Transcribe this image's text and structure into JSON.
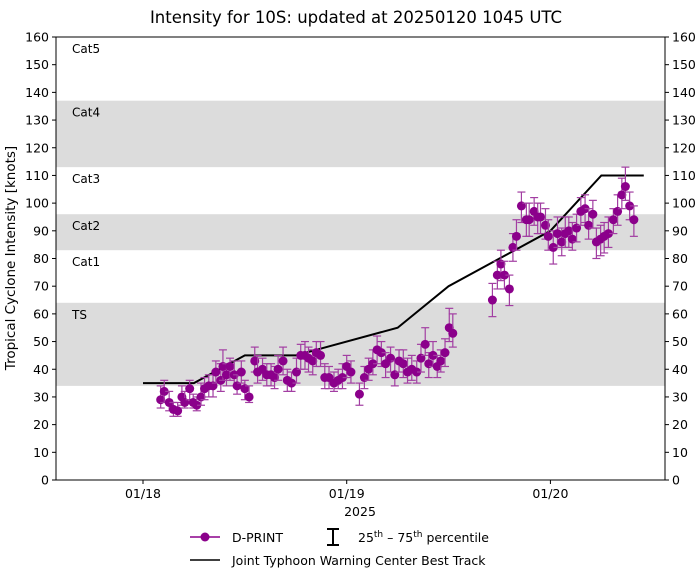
{
  "chart_data": {
    "type": "scatter",
    "title": "Intensity for 10S: updated at 20250120 1045 UTC",
    "xlabel": "2025",
    "ylabel": "Tropical Cyclone Intensity [knots]",
    "xlim": [
      "01/17 13:45",
      "01/20 13:30"
    ],
    "ylim": [
      0,
      160
    ],
    "x_ticks": [
      "01/18",
      "01/19",
      "01/20"
    ],
    "y_ticks": [
      0,
      10,
      20,
      30,
      40,
      50,
      60,
      70,
      80,
      90,
      100,
      110,
      120,
      130,
      140,
      150,
      160
    ],
    "grid": false,
    "category_bands": [
      {
        "label": "TS",
        "range": [
          34,
          64
        ],
        "shaded": true
      },
      {
        "label": "Cat1",
        "range": [
          64,
          83
        ],
        "shaded": false
      },
      {
        "label": "Cat2",
        "range": [
          83,
          96
        ],
        "shaded": true
      },
      {
        "label": "Cat3",
        "range": [
          96,
          113
        ],
        "shaded": false
      },
      {
        "label": "Cat4",
        "range": [
          113,
          137
        ],
        "shaded": true
      },
      {
        "label": "Cat5",
        "range": [
          137,
          160
        ],
        "shaded": false
      }
    ],
    "band_color": "#dcdcdc",
    "legend": {
      "placement": "bottom",
      "dprint": "D-PRINT",
      "percentile_pre": "25",
      "percentile_sup1": "th",
      "percentile_mid": " – 75",
      "percentile_sup2": "th",
      "percentile_post": " percentile",
      "best_track": "Joint Typhoon Warning Center Best Track"
    },
    "series": [
      {
        "name": "D-PRINT",
        "color": "#8b008b",
        "fields": [
          "time",
          "intensity",
          "p25",
          "p75"
        ],
        "points": [
          [
            "01/18 02:05",
            29,
            26,
            34
          ],
          [
            "01/18 02:30",
            32,
            28,
            36
          ],
          [
            "01/18 03:05",
            28,
            25,
            32
          ],
          [
            "01/18 03:35",
            25.5,
            23,
            28
          ],
          [
            "01/18 04:05",
            25,
            23,
            28
          ],
          [
            "01/18 04:35",
            30,
            27,
            34
          ],
          [
            "01/18 04:55",
            28,
            26,
            32
          ],
          [
            "01/18 05:30",
            33,
            29,
            36
          ],
          [
            "01/18 05:55",
            28,
            26,
            31
          ],
          [
            "01/18 06:20",
            27,
            25,
            30
          ],
          [
            "01/18 06:50",
            30,
            27,
            35
          ],
          [
            "01/18 07:15",
            33,
            29,
            37
          ],
          [
            "01/18 07:45",
            34,
            30,
            38
          ],
          [
            "01/18 08:15",
            34,
            30,
            38
          ],
          [
            "01/18 08:35",
            39,
            35,
            43
          ],
          [
            "01/18 09:10",
            36,
            32,
            42
          ],
          [
            "01/18 09:25",
            41,
            36,
            47
          ],
          [
            "01/18 09:50",
            38,
            34,
            42
          ],
          [
            "01/18 10:15",
            41,
            36,
            44
          ],
          [
            "01/18 10:45",
            38,
            34,
            43
          ],
          [
            "01/18 11:05",
            34,
            31,
            38
          ],
          [
            "01/18 11:35",
            39,
            35,
            43
          ],
          [
            "01/18 12:00",
            33,
            29,
            36
          ],
          [
            "01/18 12:30",
            30,
            28,
            34
          ],
          [
            "01/18 13:10",
            43,
            39,
            48
          ],
          [
            "01/18 13:30",
            39,
            35,
            45
          ],
          [
            "01/18 14:05",
            40,
            36,
            44
          ],
          [
            "01/18 14:35",
            38,
            34,
            42
          ],
          [
            "01/18 15:05",
            38,
            34,
            42
          ],
          [
            "01/18 15:30",
            37,
            33,
            41
          ],
          [
            "01/18 15:55",
            40,
            36,
            45
          ],
          [
            "01/18 16:30",
            43,
            38,
            48
          ],
          [
            "01/18 17:00",
            36,
            32,
            40
          ],
          [
            "01/18 17:30",
            35,
            32,
            39
          ],
          [
            "01/18 18:05",
            39,
            35,
            44
          ],
          [
            "01/18 18:35",
            45,
            40,
            49
          ],
          [
            "01/18 19:05",
            45,
            40,
            50
          ],
          [
            "01/18 19:30",
            44,
            39,
            48
          ],
          [
            "01/18 20:00",
            43,
            38,
            47
          ],
          [
            "01/18 20:25",
            46,
            41,
            50
          ],
          [
            "01/18 20:55",
            45,
            41,
            50
          ],
          [
            "01/18 21:25",
            37,
            33,
            42
          ],
          [
            "01/18 21:55",
            37,
            33,
            41
          ],
          [
            "01/18 22:30",
            35,
            32,
            39
          ],
          [
            "01/18 23:00",
            36,
            33,
            40
          ],
          [
            "01/18 23:30",
            37,
            33,
            42
          ],
          [
            "01/19 00:00",
            41,
            37,
            45
          ],
          [
            "01/19 00:30",
            39,
            35,
            43
          ],
          [
            "01/19 01:30",
            31,
            27,
            35
          ],
          [
            "01/19 02:05",
            37,
            33,
            41
          ],
          [
            "01/19 02:35",
            40,
            36,
            44
          ],
          [
            "01/19 03:05",
            42,
            38,
            47
          ],
          [
            "01/19 03:35",
            47,
            42,
            52
          ],
          [
            "01/19 04:05",
            46,
            41,
            50
          ],
          [
            "01/19 04:35",
            42,
            37,
            46
          ],
          [
            "01/19 05:10",
            44,
            39,
            48
          ],
          [
            "01/19 05:40",
            38,
            34,
            43
          ],
          [
            "01/19 06:10",
            43,
            39,
            47
          ],
          [
            "01/19 06:40",
            42,
            37,
            47
          ],
          [
            "01/19 07:10",
            39,
            35,
            44
          ],
          [
            "01/19 07:40",
            40,
            36,
            45
          ],
          [
            "01/19 08:15",
            39,
            35,
            43
          ],
          [
            "01/19 08:45",
            44,
            39,
            49
          ],
          [
            "01/19 09:15",
            49,
            45,
            55
          ],
          [
            "01/19 09:40",
            42,
            37,
            46
          ],
          [
            "01/19 10:10",
            45,
            41,
            50
          ],
          [
            "01/19 10:40",
            41,
            37,
            45
          ],
          [
            "01/19 11:05",
            43,
            39,
            47
          ],
          [
            "01/19 11:35",
            46,
            41,
            51
          ],
          [
            "01/19 12:05",
            55,
            50,
            62
          ],
          [
            "01/19 12:30",
            53,
            48,
            60
          ],
          [
            "01/19 17:10",
            65,
            59,
            71
          ],
          [
            "01/19 17:45",
            74,
            69,
            79
          ],
          [
            "01/19 18:10",
            78,
            72,
            83
          ],
          [
            "01/19 18:35",
            74,
            69,
            79
          ],
          [
            "01/19 19:10",
            69,
            63,
            74
          ],
          [
            "01/19 19:35",
            84,
            79,
            89
          ],
          [
            "01/19 20:00",
            88,
            83,
            94
          ],
          [
            "01/19 20:35",
            99,
            93,
            104
          ],
          [
            "01/19 21:10",
            94,
            88,
            100
          ],
          [
            "01/19 21:30",
            94,
            88,
            100
          ],
          [
            "01/19 22:05",
            97,
            92,
            102
          ],
          [
            "01/19 22:30",
            95,
            89,
            100
          ],
          [
            "01/19 22:50",
            95,
            89,
            100
          ],
          [
            "01/19 23:25",
            92,
            87,
            98
          ],
          [
            "01/19 23:45",
            88,
            83,
            94
          ],
          [
            "01/20 00:20",
            84,
            78,
            90
          ],
          [
            "01/20 00:50",
            89,
            84,
            95
          ],
          [
            "01/20 01:20",
            86,
            81,
            91
          ],
          [
            "01/20 01:45",
            89,
            84,
            95
          ],
          [
            "01/20 02:10",
            90,
            84,
            95
          ],
          [
            "01/20 02:35",
            87,
            83,
            93
          ],
          [
            "01/20 03:05",
            91,
            86,
            96
          ],
          [
            "01/20 03:35",
            97,
            92,
            102
          ],
          [
            "01/20 04:05",
            98,
            93,
            103
          ],
          [
            "01/20 04:30",
            92,
            87,
            98
          ],
          [
            "01/20 05:00",
            96,
            91,
            101
          ],
          [
            "01/20 05:25",
            86,
            80,
            91
          ],
          [
            "01/20 05:55",
            87,
            81,
            92
          ],
          [
            "01/20 06:20",
            88,
            82,
            93
          ],
          [
            "01/20 06:50",
            89,
            84,
            95
          ],
          [
            "01/20 07:25",
            94,
            89,
            98
          ],
          [
            "01/20 07:55",
            97,
            92,
            103
          ],
          [
            "01/20 08:25",
            103,
            98,
            109
          ],
          [
            "01/20 08:50",
            106,
            101,
            113
          ],
          [
            "01/20 09:20",
            99,
            94,
            104
          ],
          [
            "01/20 09:50",
            94,
            88,
            99
          ]
        ]
      },
      {
        "name": "Joint Typhoon Warning Center Best Track",
        "color": "#000000",
        "fields": [
          "time",
          "intensity"
        ],
        "points": [
          [
            "01/18 00:00",
            35
          ],
          [
            "01/18 06:00",
            35
          ],
          [
            "01/18 12:00",
            45
          ],
          [
            "01/18 18:00",
            45
          ],
          [
            "01/19 06:00",
            55
          ],
          [
            "01/19 12:00",
            70
          ],
          [
            "01/19 18:00",
            80
          ],
          [
            "01/20 00:00",
            90
          ],
          [
            "01/20 06:00",
            110
          ],
          [
            "01/20 11:00",
            110
          ]
        ]
      }
    ]
  }
}
